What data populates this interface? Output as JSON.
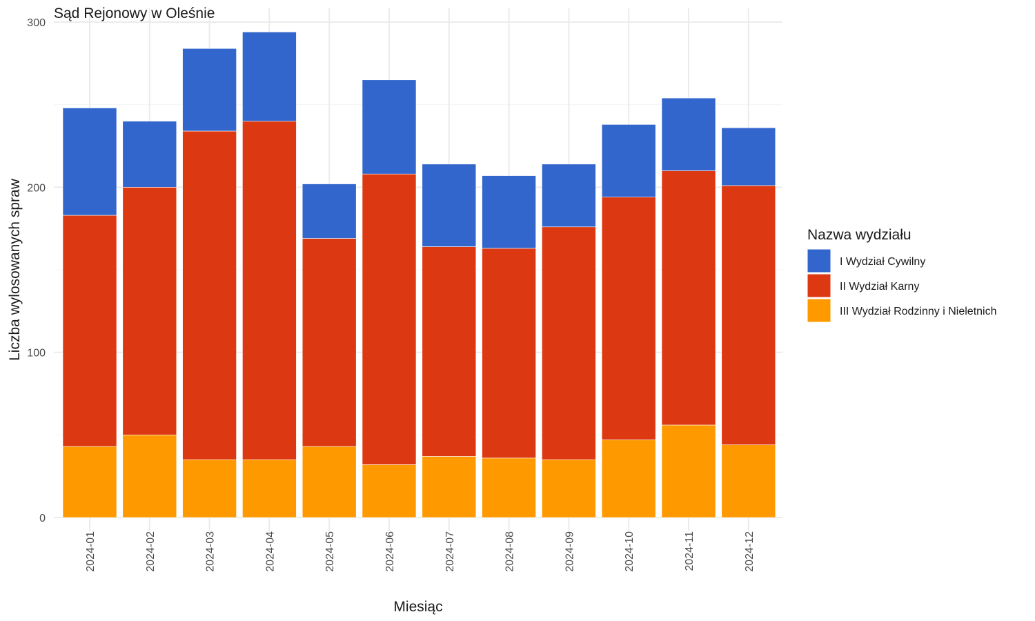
{
  "chart_data": {
    "type": "bar",
    "stacked": true,
    "title": "Sąd Rejonowy w Oleśnie",
    "xlabel": "Miesiąc",
    "ylabel": "Liczba wylosowanych spraw",
    "ylim": [
      0,
      300
    ],
    "yticks": [
      0,
      100,
      200,
      300
    ],
    "grid": true,
    "legend": {
      "title": "Nazwa wydziału",
      "placement": "right"
    },
    "categories": [
      "2024-01",
      "2024-02",
      "2024-03",
      "2024-04",
      "2024-05",
      "2024-06",
      "2024-07",
      "2024-08",
      "2024-09",
      "2024-10",
      "2024-11",
      "2024-12"
    ],
    "series": [
      {
        "name": "I Wydział Cywilny",
        "color": "#3366CC",
        "values": [
          65,
          40,
          50,
          54,
          33,
          57,
          50,
          44,
          38,
          44,
          44,
          35
        ]
      },
      {
        "name": "II Wydział Karny",
        "color": "#DC3912",
        "values": [
          140,
          150,
          199,
          205,
          126,
          176,
          127,
          127,
          141,
          147,
          154,
          157
        ]
      },
      {
        "name": "III Wydział Rodzinny i Nieletnich",
        "color": "#FF9900",
        "values": [
          43,
          50,
          35,
          35,
          43,
          32,
          37,
          36,
          35,
          47,
          56,
          44
        ]
      }
    ]
  }
}
